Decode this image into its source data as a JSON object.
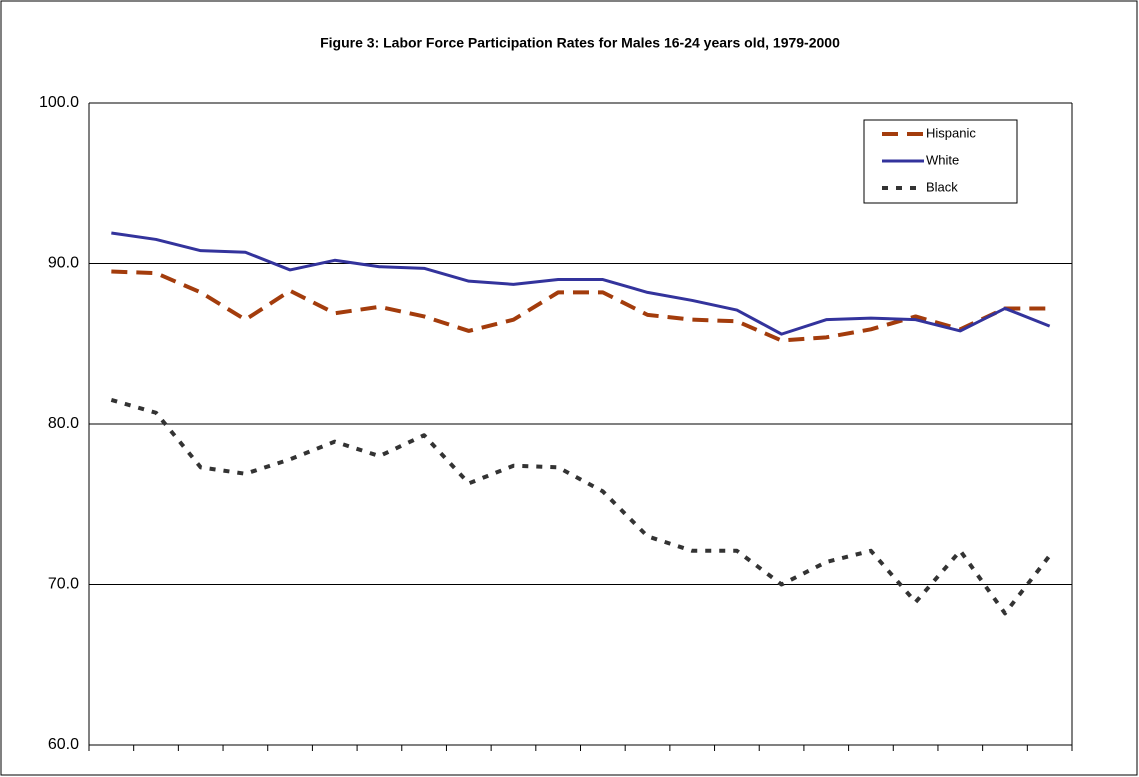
{
  "chart_data": {
    "type": "line",
    "title": "Figure 3: Labor Force Participation Rates for Males 16-24 years old, 1979-2000",
    "categories": [
      null,
      null,
      null,
      null,
      null,
      null,
      null,
      null,
      null,
      null,
      null,
      null,
      null,
      null,
      null,
      null,
      null,
      null,
      null,
      null,
      null,
      null
    ],
    "series": [
      {
        "name": "Hispanic",
        "color": "#a33c0c",
        "dash": "16,9",
        "values": [
          89.5,
          89.4,
          88.2,
          86.5,
          88.3,
          86.9,
          87.3,
          86.7,
          85.8,
          86.5,
          88.2,
          88.2,
          86.8,
          86.5,
          86.4,
          85.2,
          85.4,
          85.9,
          86.7,
          85.9,
          87.2,
          87.2
        ]
      },
      {
        "name": "White",
        "color": "#33339c",
        "values": [
          91.9,
          91.5,
          90.8,
          90.7,
          89.6,
          90.2,
          89.8,
          89.7,
          88.9,
          88.7,
          89.0,
          89.0,
          88.2,
          87.7,
          87.1,
          85.6,
          86.5,
          86.6,
          86.5,
          85.8,
          87.2,
          86.1
        ]
      },
      {
        "name": "Black",
        "color": "#333333",
        "dash": "6,8",
        "values": [
          81.5,
          80.7,
          77.3,
          76.9,
          77.8,
          78.9,
          78.0,
          79.3,
          76.3,
          77.4,
          77.3,
          75.8,
          73.0,
          72.1,
          72.1,
          70.0,
          71.4,
          72.1,
          68.9,
          72.1,
          68.2,
          71.8
        ]
      }
    ],
    "ylim": [
      60,
      100
    ],
    "yticks": [
      {
        "value": 60,
        "label": "60.0"
      },
      {
        "value": 70,
        "label": "70.0"
      },
      {
        "value": 80,
        "label": "80.0"
      },
      {
        "value": 90,
        "label": "90.0"
      },
      {
        "value": 100,
        "label": "100.0"
      }
    ],
    "grid": true
  }
}
